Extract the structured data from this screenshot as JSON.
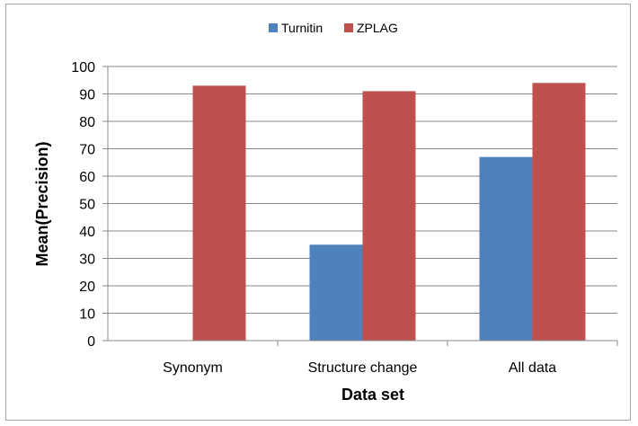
{
  "chart_data": {
    "type": "bar",
    "categories": [
      "Synonym",
      "Structure change",
      "All data"
    ],
    "series": [
      {
        "name": "Turnitin",
        "values": [
          0,
          35,
          67
        ],
        "color": "#4f81bd"
      },
      {
        "name": "ZPLAG",
        "values": [
          93,
          91,
          94
        ],
        "color": "#c0504d"
      }
    ],
    "xlabel": "Data set",
    "ylabel": "Mean(Precision)",
    "ylim": [
      0,
      100
    ],
    "yticks": [
      0,
      10,
      20,
      30,
      40,
      50,
      60,
      70,
      80,
      90,
      100
    ],
    "grid": true,
    "legend_position": "top"
  }
}
